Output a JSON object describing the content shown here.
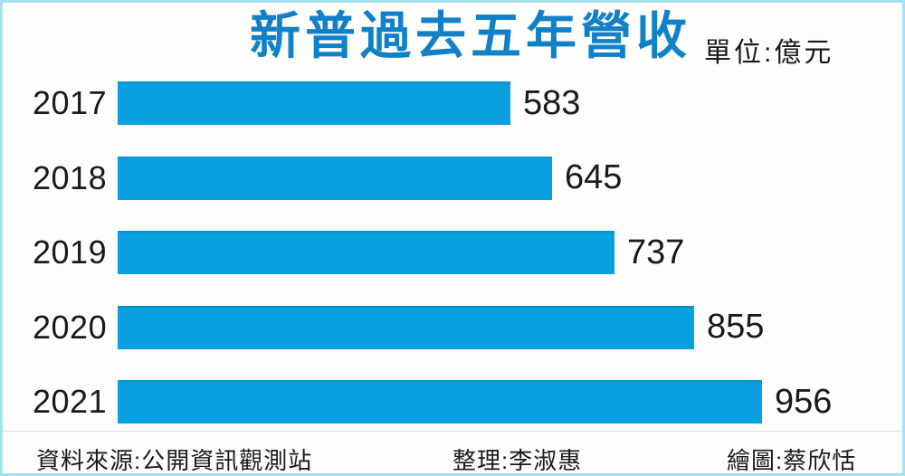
{
  "header": {
    "title": "新普過去五年營收",
    "unit_label": "單位:億元",
    "title_color": "#1080c8"
  },
  "chart_data": {
    "type": "bar",
    "orientation": "horizontal",
    "title": "新普過去五年營收",
    "unit": "億元",
    "categories": [
      "2017",
      "2018",
      "2019",
      "2020",
      "2021"
    ],
    "values": [
      583,
      645,
      737,
      855,
      956
    ],
    "xlim": [
      0,
      956
    ],
    "bar_color": "#0aa0e0",
    "grid": false,
    "legend": false,
    "value_labels_position": "end-of-bar"
  },
  "footer": {
    "source": "資料來源:公開資訊觀測站",
    "editor": "整理:李淑惠",
    "illustrator": "繪圖:蔡欣恬"
  },
  "page": {
    "border_color": "#a5e0f3",
    "background": "#fdfdfb"
  }
}
